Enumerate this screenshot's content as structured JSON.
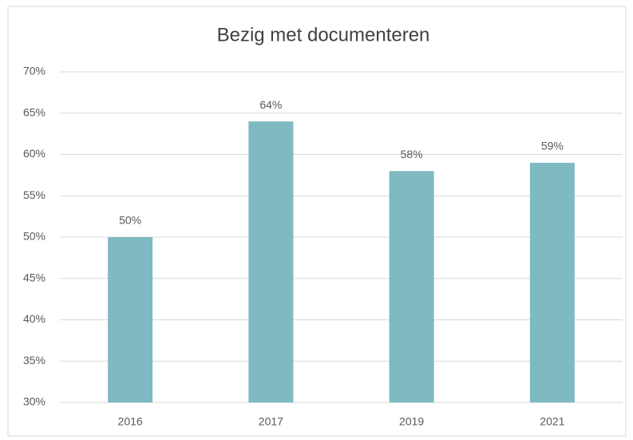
{
  "chart_data": {
    "type": "bar",
    "title": "Bezig met documenteren",
    "categories": [
      "2016",
      "2017",
      "2019",
      "2021"
    ],
    "values": [
      50,
      64,
      58,
      59
    ],
    "value_labels": [
      "50%",
      "64%",
      "58%",
      "59%"
    ],
    "color": "#7fb9c1",
    "ylim": [
      30,
      70
    ],
    "yticks": [
      {
        "value": 30,
        "label": "30%"
      },
      {
        "value": 35,
        "label": "35%"
      },
      {
        "value": 40,
        "label": "40%"
      },
      {
        "value": 45,
        "label": "45%"
      },
      {
        "value": 50,
        "label": "50%"
      },
      {
        "value": 55,
        "label": "55%"
      },
      {
        "value": 60,
        "label": "60%"
      },
      {
        "value": 65,
        "label": "65%"
      },
      {
        "value": 70,
        "label": "70%"
      }
    ],
    "grid": true
  }
}
